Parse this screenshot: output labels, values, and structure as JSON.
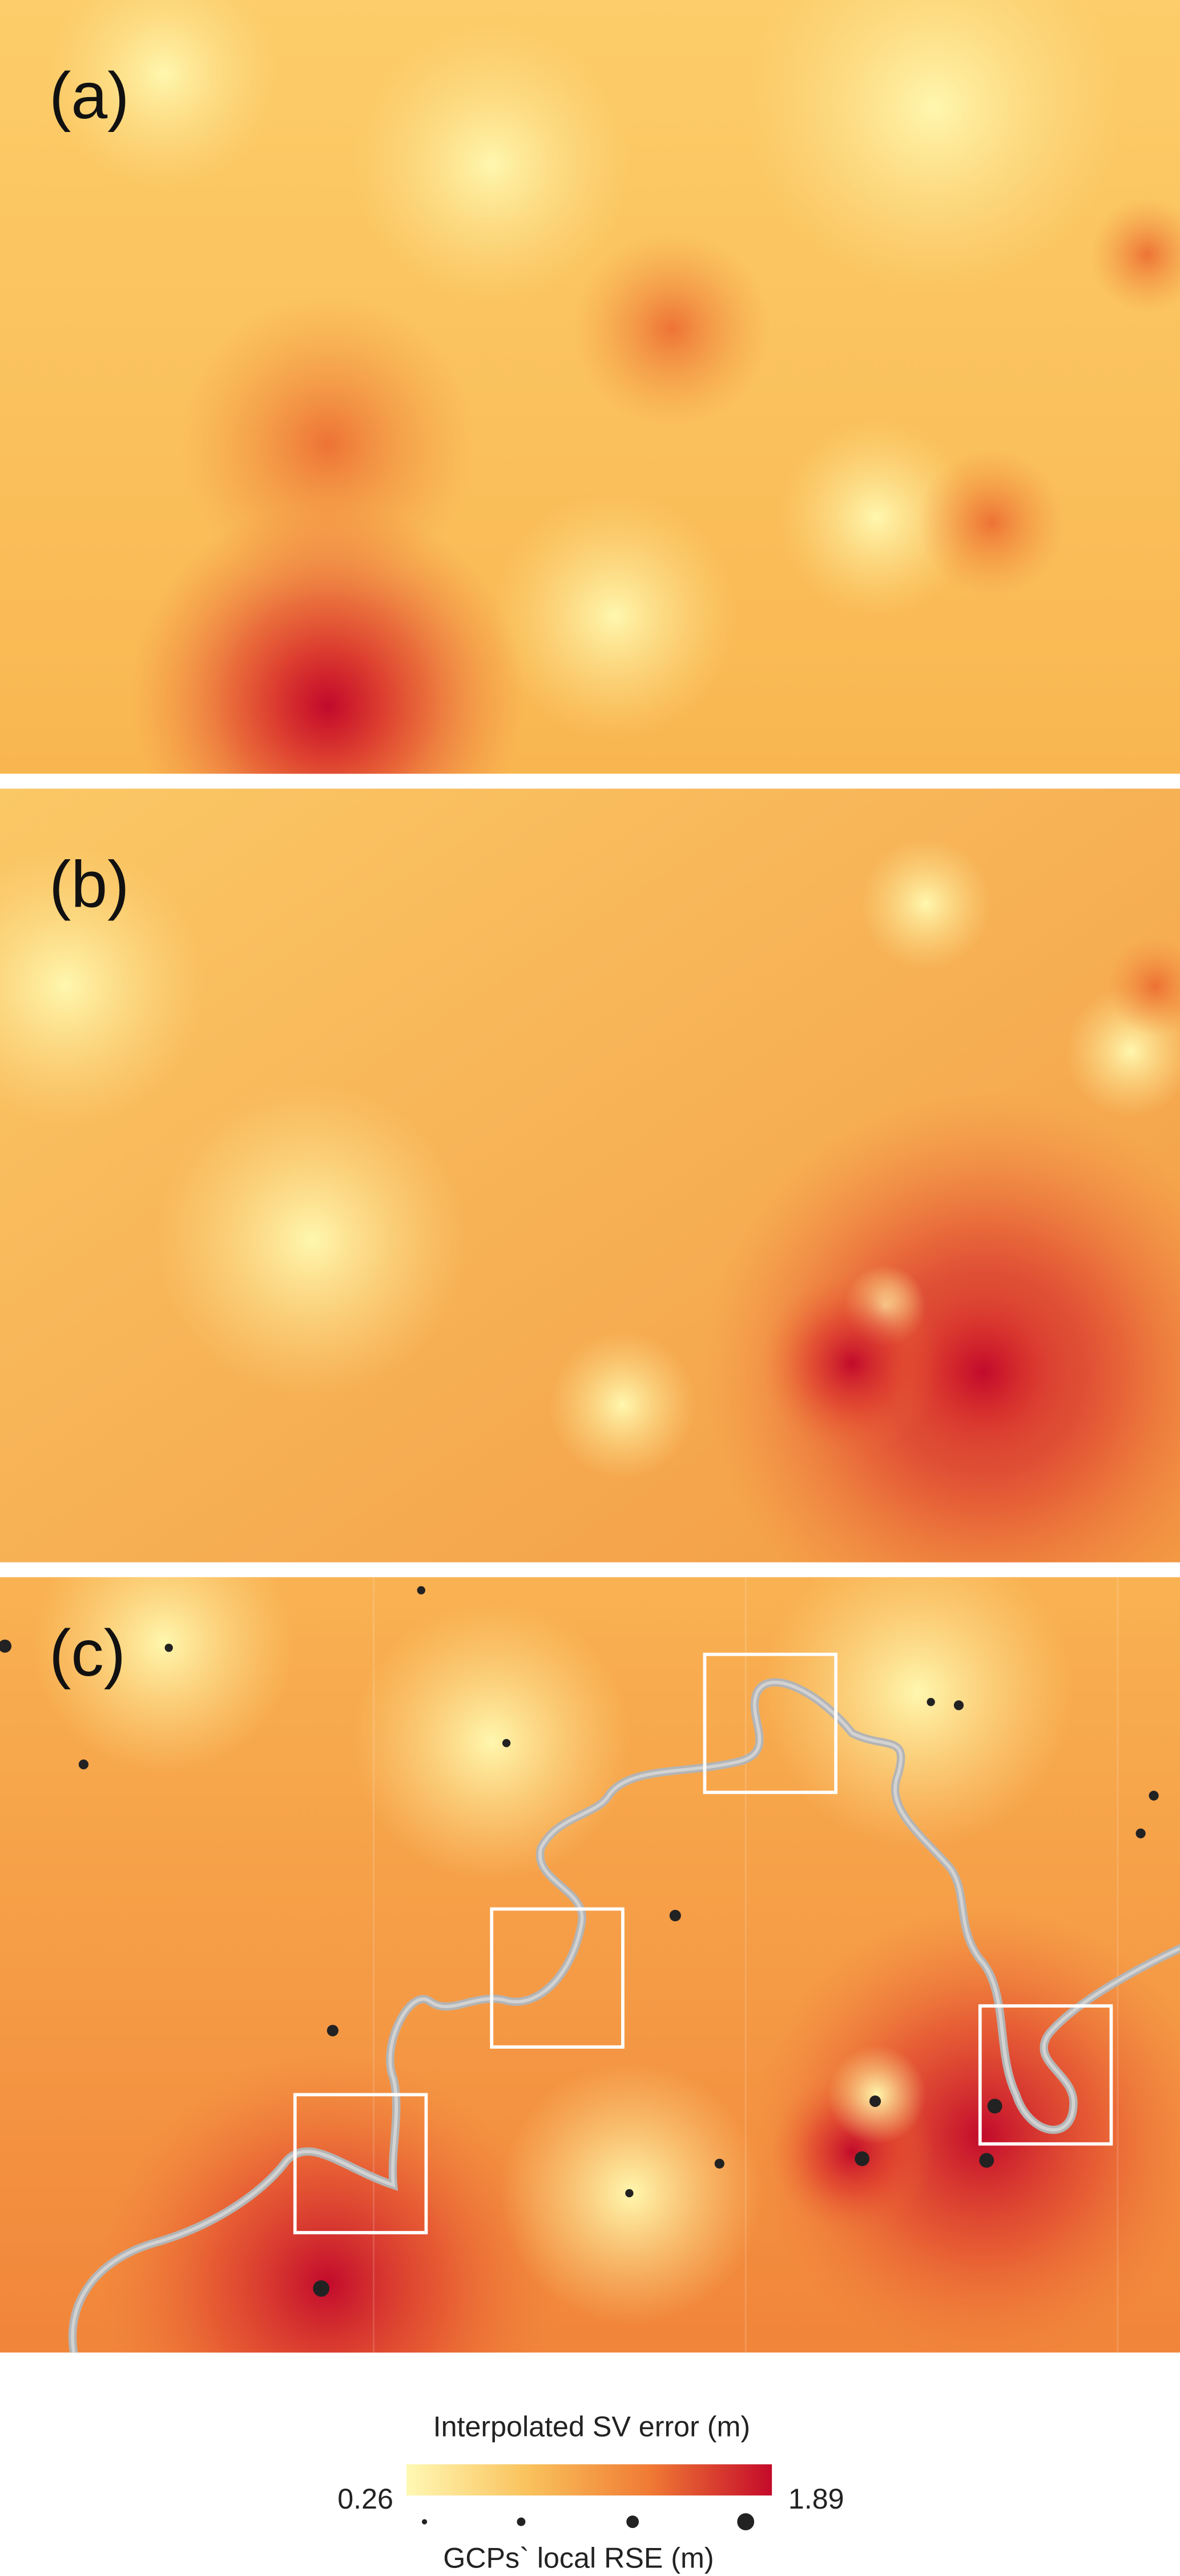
{
  "panels": [
    {
      "label": "(a)"
    },
    {
      "label": "(b)"
    },
    {
      "label": "(c)"
    }
  ],
  "legend": {
    "fill_title": "Interpolated SV error (m)",
    "min": 0.26,
    "max": 1.89,
    "colors": [
      "#fff8b4",
      "#f9c25c",
      "#f07a34",
      "#c40a2a"
    ],
    "size_title": "GCPs` local RSE (m)"
  }
}
